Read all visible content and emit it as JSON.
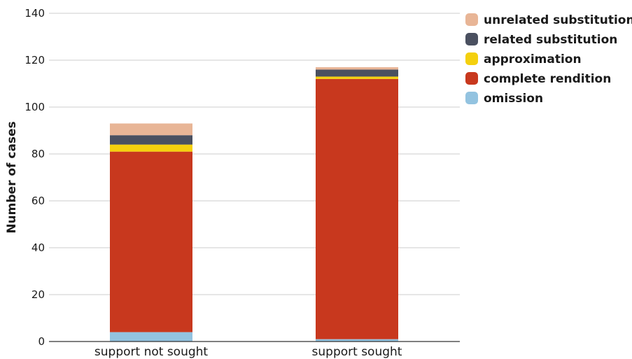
{
  "chart_data": {
    "type": "bar",
    "stacked": true,
    "title": "",
    "xlabel": "",
    "ylabel": "Number of cases",
    "ylim": [
      0,
      140
    ],
    "yticks": [
      0,
      20,
      40,
      60,
      80,
      100,
      120,
      140
    ],
    "grid": true,
    "legend_position": "top-right",
    "categories": [
      "support not sought",
      "support sought"
    ],
    "series": [
      {
        "name": "omission",
        "color": "#93c3e0",
        "values": [
          4,
          1
        ]
      },
      {
        "name": "complete rendition",
        "color": "#c8381e",
        "values": [
          77,
          111
        ]
      },
      {
        "name": "approximation",
        "color": "#f4d00e",
        "values": [
          3,
          1
        ]
      },
      {
        "name": "related substitution",
        "color": "#4a5060",
        "values": [
          4,
          3
        ]
      },
      {
        "name": "unrelated substitution",
        "color": "#e8b596",
        "values": [
          5,
          1
        ]
      }
    ],
    "legend_order": [
      "unrelated substitution",
      "related substitution",
      "approximation",
      "complete rendition",
      "omission"
    ]
  }
}
